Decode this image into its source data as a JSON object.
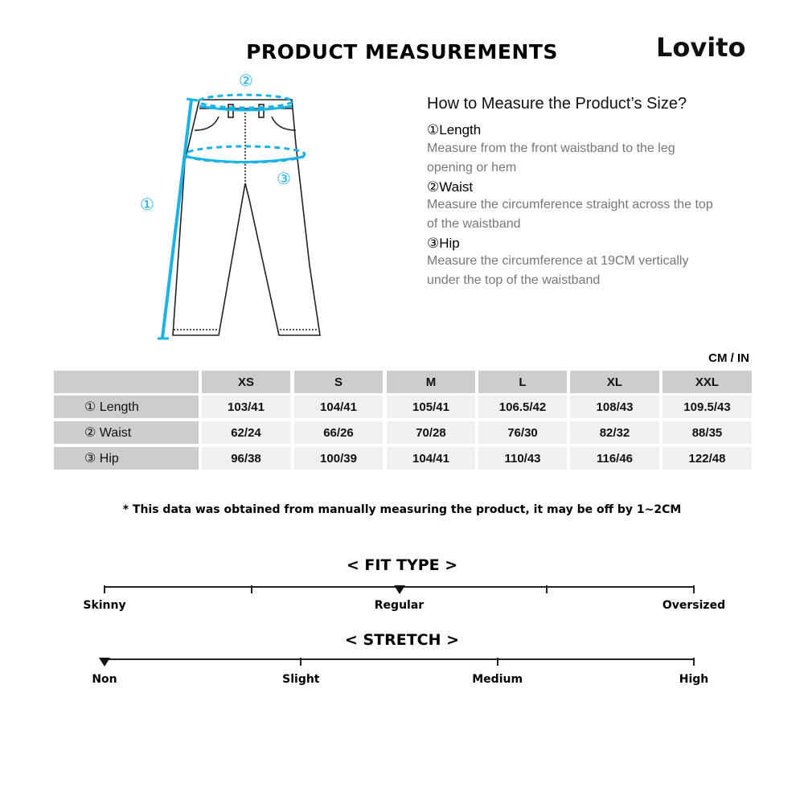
{
  "header": {
    "title": "PRODUCT MEASUREMENTS",
    "logo": "Lovito"
  },
  "diagram": {
    "labels": [
      "①",
      "②",
      "③"
    ],
    "accent_color": "#1ab3e6"
  },
  "guide": {
    "title": "How to Measure the Product’s Size?",
    "sections": [
      {
        "heading": "①Length",
        "desc": "Measure from the front waistband to the leg opening or hem"
      },
      {
        "heading": "②Waist",
        "desc": "Measure the circumference straight across the top of the waistband"
      },
      {
        "heading": "③Hip",
        "desc": "Measure the circumference at 19CM vertically under the top of the waistband"
      }
    ]
  },
  "table": {
    "unit": "CM / IN",
    "sizes": [
      "XS",
      "S",
      "M",
      "L",
      "XL",
      "XXL"
    ],
    "rows": [
      {
        "label": "① Length",
        "values": [
          "103/41",
          "104/41",
          "105/41",
          "106.5/42",
          "108/43",
          "109.5/43"
        ]
      },
      {
        "label": "② Waist",
        "values": [
          "62/24",
          "66/26",
          "70/28",
          "76/30",
          "82/32",
          "88/35"
        ]
      },
      {
        "label": "③ Hip",
        "values": [
          "96/38",
          "100/39",
          "104/41",
          "110/43",
          "116/46",
          "122/48"
        ]
      }
    ]
  },
  "note": "* This data was obtained from manually measuring the product, it may be off by 1~2CM",
  "fit_type": {
    "title": "< FIT TYPE >",
    "labels": [
      "Skinny",
      "Regular",
      "Oversized"
    ],
    "selected": "Regular"
  },
  "stretch": {
    "title": "< STRETCH >",
    "labels": [
      "Non",
      "Slight",
      "Medium",
      "High"
    ],
    "selected": "Non"
  }
}
